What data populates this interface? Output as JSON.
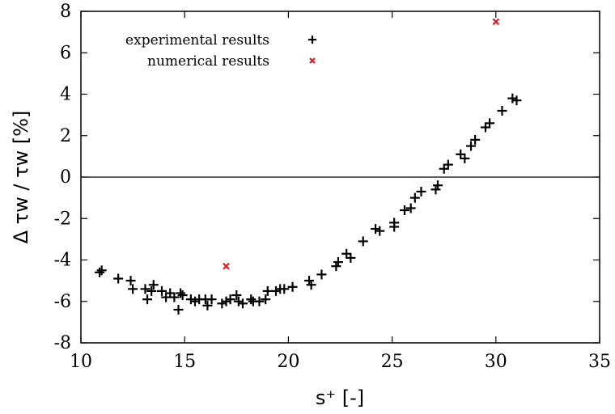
{
  "chart_data": {
    "type": "scatter",
    "xlabel": "s⁺  [-]",
    "ylabel": "Δ τw / τw  [%]",
    "xlim": [
      10,
      35
    ],
    "ylim": [
      -8,
      8
    ],
    "xticks": [
      10,
      15,
      20,
      25,
      30,
      35
    ],
    "yticks": [
      -8,
      -6,
      -4,
      -2,
      0,
      2,
      4,
      6,
      8
    ],
    "xtick_labels": [
      "10",
      "15",
      "20",
      "25",
      "30",
      "35"
    ],
    "ytick_labels": [
      "-8",
      "-6",
      "-4",
      "-2",
      "0",
      "2",
      "4",
      "6",
      "8"
    ],
    "grid": false,
    "zero_line": true,
    "legend_position": "top-left",
    "series": [
      {
        "name": "experimental results",
        "marker": "plus",
        "color": "#000000",
        "points": [
          [
            10.9,
            -4.6
          ],
          [
            11.0,
            -4.5
          ],
          [
            11.8,
            -4.9
          ],
          [
            12.4,
            -5.0
          ],
          [
            12.5,
            -5.4
          ],
          [
            13.1,
            -5.4
          ],
          [
            13.2,
            -5.9
          ],
          [
            13.4,
            -5.5
          ],
          [
            13.5,
            -5.2
          ],
          [
            13.9,
            -5.5
          ],
          [
            14.1,
            -5.8
          ],
          [
            14.3,
            -5.6
          ],
          [
            14.5,
            -5.8
          ],
          [
            14.7,
            -6.4
          ],
          [
            14.8,
            -5.6
          ],
          [
            14.9,
            -5.7
          ],
          [
            15.3,
            -5.9
          ],
          [
            15.5,
            -6.0
          ],
          [
            15.7,
            -5.9
          ],
          [
            16.0,
            -5.9
          ],
          [
            16.1,
            -6.2
          ],
          [
            16.3,
            -5.9
          ],
          [
            16.8,
            -6.1
          ],
          [
            17.0,
            -6.0
          ],
          [
            17.2,
            -5.9
          ],
          [
            17.5,
            -5.7
          ],
          [
            17.6,
            -6.0
          ],
          [
            17.8,
            -6.1
          ],
          [
            18.2,
            -5.9
          ],
          [
            18.3,
            -6.0
          ],
          [
            18.6,
            -6.0
          ],
          [
            18.9,
            -5.9
          ],
          [
            19.0,
            -5.5
          ],
          [
            19.4,
            -5.5
          ],
          [
            19.6,
            -5.4
          ],
          [
            19.8,
            -5.4
          ],
          [
            20.2,
            -5.3
          ],
          [
            21.0,
            -5.0
          ],
          [
            21.1,
            -5.2
          ],
          [
            21.6,
            -4.7
          ],
          [
            22.3,
            -4.3
          ],
          [
            22.4,
            -4.1
          ],
          [
            22.8,
            -3.7
          ],
          [
            23.0,
            -3.9
          ],
          [
            23.6,
            -3.1
          ],
          [
            24.2,
            -2.5
          ],
          [
            24.4,
            -2.6
          ],
          [
            25.1,
            -2.2
          ],
          [
            25.1,
            -2.4
          ],
          [
            25.6,
            -1.6
          ],
          [
            25.9,
            -1.5
          ],
          [
            26.1,
            -1.0
          ],
          [
            26.4,
            -0.7
          ],
          [
            27.1,
            -0.6
          ],
          [
            27.2,
            -0.4
          ],
          [
            27.5,
            0.4
          ],
          [
            27.7,
            0.6
          ],
          [
            28.3,
            1.1
          ],
          [
            28.5,
            0.9
          ],
          [
            28.8,
            1.5
          ],
          [
            29.0,
            1.8
          ],
          [
            29.5,
            2.4
          ],
          [
            29.7,
            2.6
          ],
          [
            30.3,
            3.2
          ],
          [
            30.8,
            3.8
          ],
          [
            31.0,
            3.7
          ]
        ]
      },
      {
        "name": "numerical results",
        "marker": "cross",
        "color": "#e41a1c",
        "points": [
          [
            17.0,
            -4.3
          ],
          [
            30.0,
            7.5
          ]
        ]
      }
    ]
  }
}
